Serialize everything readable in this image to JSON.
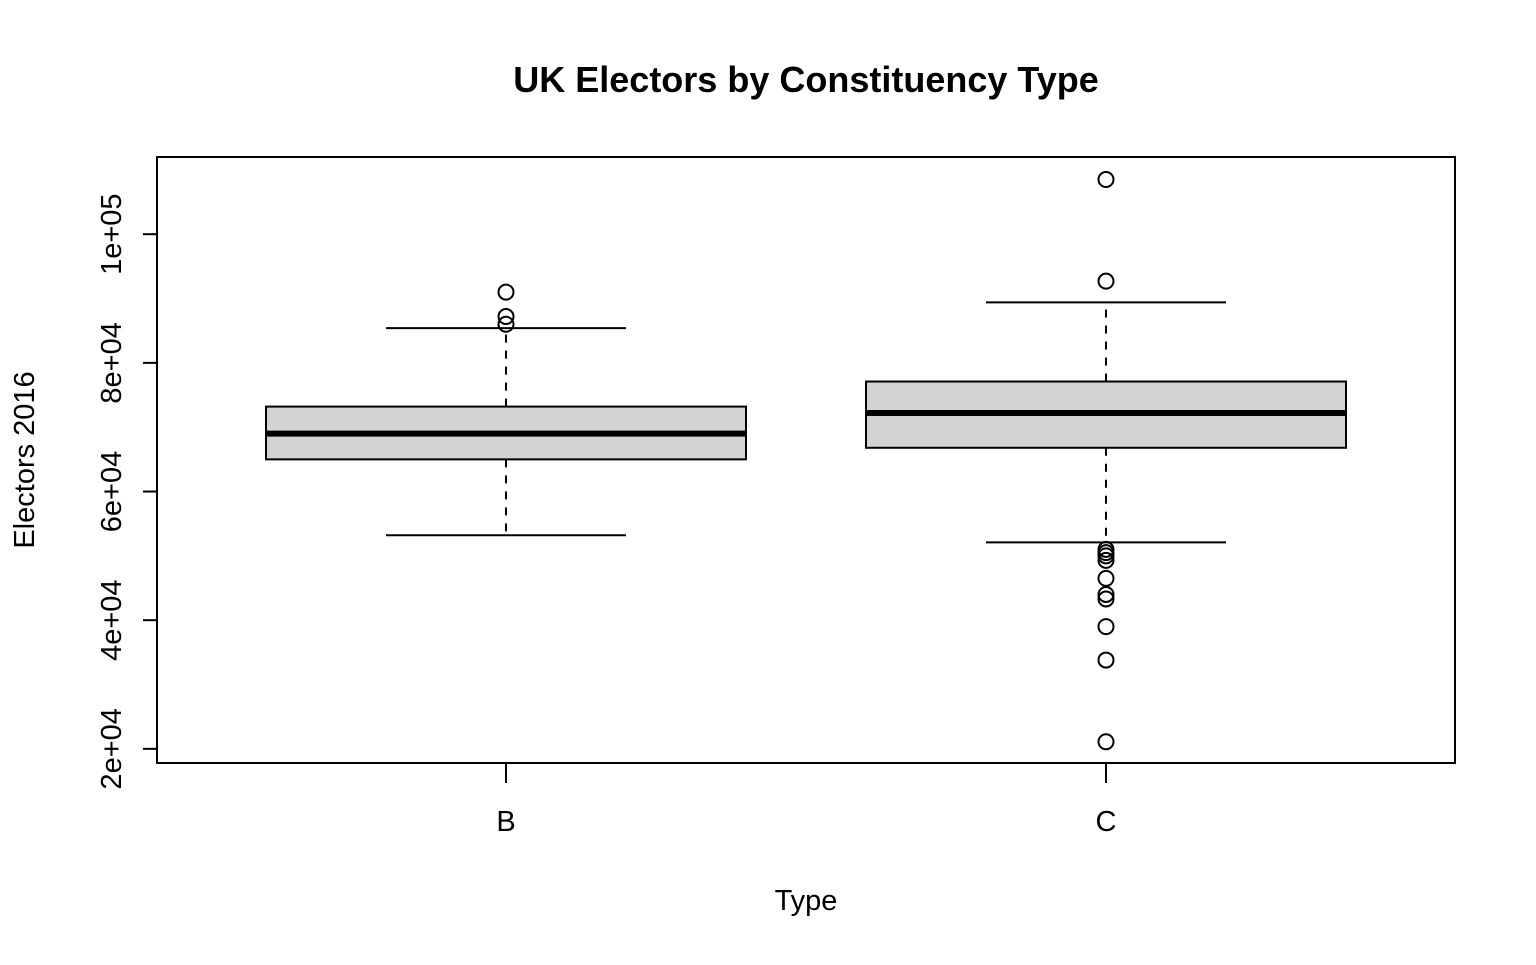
{
  "chart_data": {
    "type": "boxplot",
    "title": "UK Electors by Constituency Type",
    "xlabel": "Type",
    "ylabel": "Electors 2016",
    "categories": [
      "B",
      "C"
    ],
    "ylim": [
      17800,
      112000
    ],
    "yticks": [
      20000,
      40000,
      60000,
      80000,
      100000
    ],
    "ytick_labels": [
      "2e+04",
      "4e+04",
      "6e+04",
      "8e+04",
      "1e+05"
    ],
    "box_fill": "#d3d3d3",
    "grid": false,
    "legend": "none",
    "boxes": [
      {
        "category": "B",
        "whisker_low": 53200,
        "q1": 65000,
        "median": 69000,
        "q3": 73200,
        "whisker_high": 85400,
        "outliers": [
          86000,
          87200,
          91000
        ]
      },
      {
        "category": "C",
        "whisker_low": 52100,
        "q1": 66800,
        "median": 72200,
        "q3": 77100,
        "whisker_high": 89400,
        "outliers": [
          108500,
          92700,
          51000,
          50500,
          50000,
          49300,
          46500,
          44000,
          43300,
          39000,
          33800,
          21100
        ]
      }
    ]
  }
}
